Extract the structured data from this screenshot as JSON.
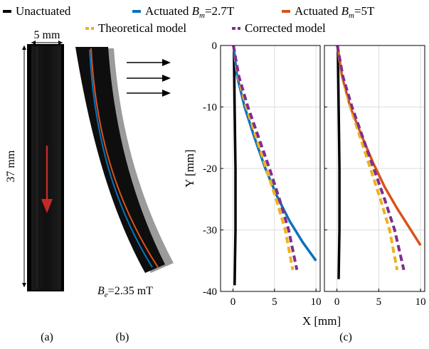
{
  "colors": {
    "unactuated": "#000000",
    "actuated_27": "#0a72bd",
    "actuated_5": "#d95319",
    "theoretical": "#edb120",
    "corrected": "#7e2f8e",
    "arrow_red": "#c62828"
  },
  "legend": {
    "unactuated": "Unactuated",
    "actuated_27": "Actuated B_m=2.7T",
    "actuated_5": "Actuated B_m=5T",
    "theoretical": "Theoretical model",
    "corrected": "Corrected model"
  },
  "photo": {
    "width_label": "5 mm",
    "length_label": "37 mm",
    "field_label": "B_e=2.35 mT"
  },
  "panel_labels": {
    "a": "(a)",
    "b": "(b)",
    "c": "(c)"
  },
  "chart_data": [
    {
      "type": "line",
      "panel": "c-left",
      "xlabel": "X [mm]",
      "ylabel": "Y [mm]",
      "xlim": [
        -1.5,
        10.5
      ],
      "ylim": [
        -40,
        0
      ],
      "xticks": [
        0,
        5,
        10
      ],
      "yticks": [
        0,
        -10,
        -20,
        -30,
        -40
      ],
      "grid": true,
      "series": [
        {
          "name": "Unactuated",
          "style": "solid",
          "color": "#000000",
          "x": [
            0.1,
            0.15,
            0.2,
            0.25,
            0.3,
            0.3,
            0.2
          ],
          "y": [
            0,
            -5,
            -10,
            -15,
            -20,
            -30,
            -39
          ]
        },
        {
          "name": "Actuated B_m=2.7T",
          "style": "solid",
          "color": "#0a72bd",
          "x": [
            0.05,
            0.5,
            1.4,
            2.6,
            3.9,
            5.3,
            6.8,
            8.4,
            10.0
          ],
          "y": [
            0,
            -5,
            -10,
            -15,
            -20,
            -24.5,
            -28.5,
            -32,
            -35
          ]
        },
        {
          "name": "Theoretical model",
          "style": "dashed",
          "color": "#edb120",
          "x": [
            0.05,
            0.6,
            1.6,
            2.8,
            4.0,
            5.2,
            6.3,
            7.2
          ],
          "y": [
            0,
            -5,
            -10,
            -15,
            -20,
            -25,
            -30,
            -36.5
          ]
        },
        {
          "name": "Corrected model",
          "style": "dashed",
          "color": "#7e2f8e",
          "x": [
            0.05,
            0.7,
            1.8,
            3.1,
            4.4,
            5.6,
            6.7,
            7.7
          ],
          "y": [
            0,
            -5,
            -10,
            -15,
            -20,
            -25,
            -30,
            -36.5
          ]
        }
      ]
    },
    {
      "type": "line",
      "panel": "c-right",
      "xlabel": "X [mm]",
      "ylabel": "",
      "xlim": [
        -1.5,
        10.5
      ],
      "ylim": [
        -40,
        0
      ],
      "xticks": [
        0,
        5,
        10
      ],
      "yticks": [
        0,
        -10,
        -20,
        -30,
        -40
      ],
      "grid": true,
      "series": [
        {
          "name": "Unactuated",
          "style": "solid",
          "color": "#000000",
          "x": [
            0.1,
            0.15,
            0.2,
            0.25,
            0.3,
            0.3,
            0.2
          ],
          "y": [
            0,
            -5,
            -10,
            -15,
            -20,
            -30,
            -38
          ]
        },
        {
          "name": "Actuated B_m=5T",
          "style": "solid",
          "color": "#d95319",
          "x": [
            0.05,
            0.6,
            1.6,
            2.9,
            4.3,
            5.7,
            7.2,
            8.6,
            10.0
          ],
          "y": [
            0,
            -5,
            -10,
            -14.5,
            -19,
            -23,
            -26.5,
            -29.5,
            -32.5
          ]
        },
        {
          "name": "Theoretical model",
          "style": "dashed",
          "color": "#edb120",
          "x": [
            0.05,
            0.6,
            1.6,
            2.8,
            4.0,
            5.2,
            6.3,
            7.2
          ],
          "y": [
            0,
            -5,
            -10,
            -15,
            -20,
            -25,
            -30,
            -36.5
          ]
        },
        {
          "name": "Corrected model",
          "style": "dashed",
          "color": "#7e2f8e",
          "x": [
            0.05,
            0.7,
            1.8,
            3.1,
            4.4,
            5.7,
            6.9,
            8.0
          ],
          "y": [
            0,
            -5,
            -10,
            -15,
            -20,
            -25,
            -30,
            -36.5
          ]
        }
      ]
    }
  ]
}
